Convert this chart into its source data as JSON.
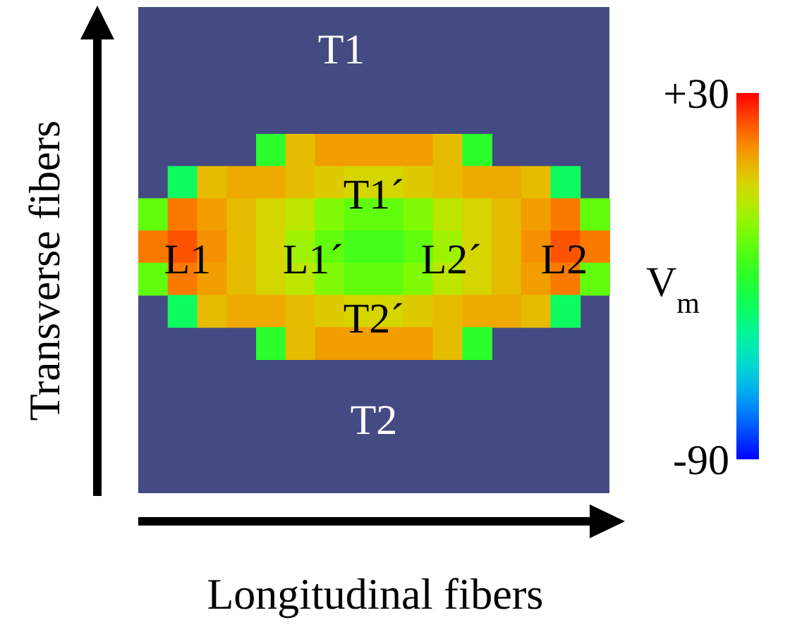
{
  "chart_data": {
    "type": "heatmap",
    "xlabel": "Longitudinal fibers",
    "ylabel": "Transverse fibers",
    "clabel": "V$_{m}$",
    "categories": [
      null,
      null,
      null,
      null,
      null,
      null,
      null,
      null,
      null,
      null,
      null,
      null,
      null,
      null,
      null,
      null
    ],
    "y_categories": [
      null,
      null,
      null,
      null,
      null,
      null,
      null
    ],
    "cells": [
      [
        null,
        null,
        null,
        null,
        -30,
        5,
        10,
        10,
        10,
        10,
        5,
        -30,
        null,
        null,
        null,
        null
      ],
      [
        null,
        -40,
        5,
        8,
        8,
        5,
        2,
        0,
        0,
        2,
        5,
        8,
        8,
        5,
        -40,
        null
      ],
      [
        -20,
        15,
        10,
        5,
        0,
        -5,
        -15,
        -20,
        -20,
        -15,
        -5,
        0,
        5,
        10,
        15,
        -20
      ],
      [
        15,
        20,
        12,
        5,
        0,
        -10,
        -20,
        -25,
        -25,
        -20,
        -10,
        0,
        5,
        12,
        20,
        15
      ],
      [
        -20,
        15,
        10,
        5,
        0,
        -5,
        -15,
        -20,
        -20,
        -15,
        -5,
        0,
        5,
        10,
        15,
        -20
      ],
      [
        null,
        -40,
        5,
        8,
        8,
        5,
        2,
        0,
        0,
        2,
        5,
        8,
        8,
        5,
        -40,
        null
      ],
      [
        null,
        null,
        null,
        null,
        -30,
        5,
        10,
        10,
        10,
        10,
        5,
        -30,
        null,
        null,
        null,
        null
      ]
    ],
    "clim": [
      -90,
      30
    ],
    "cticks": [
      {
        "value": -90,
        "label": "-90"
      },
      {
        "value": 30,
        "label": "+30"
      }
    ],
    "tick_labels": false,
    "annotations": [
      "T1",
      "T1´",
      "L1",
      "L1´",
      "L2´",
      "L2",
      "T2´",
      "T2"
    ]
  }
}
